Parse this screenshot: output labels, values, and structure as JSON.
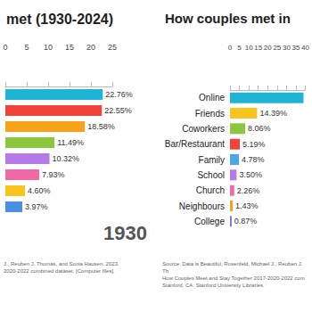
{
  "chart_data": [
    {
      "type": "bar",
      "title": "met (1930-2024)",
      "orientation": "horizontal",
      "categories": [
        null,
        null,
        null,
        null,
        null,
        null,
        null,
        null
      ],
      "values": [
        22.76,
        22.55,
        18.58,
        11.49,
        10.32,
        7.93,
        4.6,
        3.97
      ],
      "value_labels": [
        "22.76%",
        "22.55%",
        "18.58%",
        "11.49%",
        "10.32%",
        "7.93%",
        "4.60%",
        "3.97%"
      ],
      "colors": [
        "#1fb3d6",
        "#f0443a",
        "#f7a21b",
        "#8cc63f",
        "#b57be6",
        "#f06aa8",
        "#f7c51e",
        "#4a90e2"
      ],
      "xlim": [
        0,
        25
      ],
      "xticks": [
        0,
        5,
        10,
        15,
        20,
        25
      ],
      "data_labels": true,
      "tick_labels": "x",
      "grid": false,
      "annotations": [
        "1930"
      ],
      "source": [
        "J., Reuben J. Thomas, and Sonia Hausen. 2023.",
        "2020-2022 combined dataset. [Computer files]."
      ]
    },
    {
      "type": "bar",
      "title": "How couples met in",
      "orientation": "horizontal",
      "categories": [
        "Online",
        "Friends",
        "Coworkers",
        "Bar/Restaurant",
        "Family",
        "School",
        "Church",
        "Neighbours",
        "College"
      ],
      "values": [
        39,
        14.39,
        8.06,
        5.19,
        4.78,
        3.5,
        2.26,
        1.43,
        0.87
      ],
      "value_labels": [
        null,
        "14.39%",
        "8.06%",
        "5.19%",
        "4.78%",
        "3.50%",
        "2.26%",
        "1.43%",
        "0.87%"
      ],
      "colors": [
        "#1fb3d6",
        "#f7c51e",
        "#8cc63f",
        "#f0443a",
        "#4aa8e8",
        "#b57be6",
        "#f06aa8",
        "#f7a21b",
        "#7a6fd6"
      ],
      "xlim": [
        0,
        40
      ],
      "xticks": [
        0,
        5,
        10,
        15,
        20,
        25,
        30,
        35,
        40
      ],
      "data_labels": true,
      "grid": false,
      "source": [
        "Source: Data is Beautiful, Rosenfeld, Michael J., Reuben J. Th",
        "How Couples Meet and Stay Together 2017-2020-2022 com",
        "Stanford, CA: Stanford University Libraries."
      ]
    }
  ]
}
